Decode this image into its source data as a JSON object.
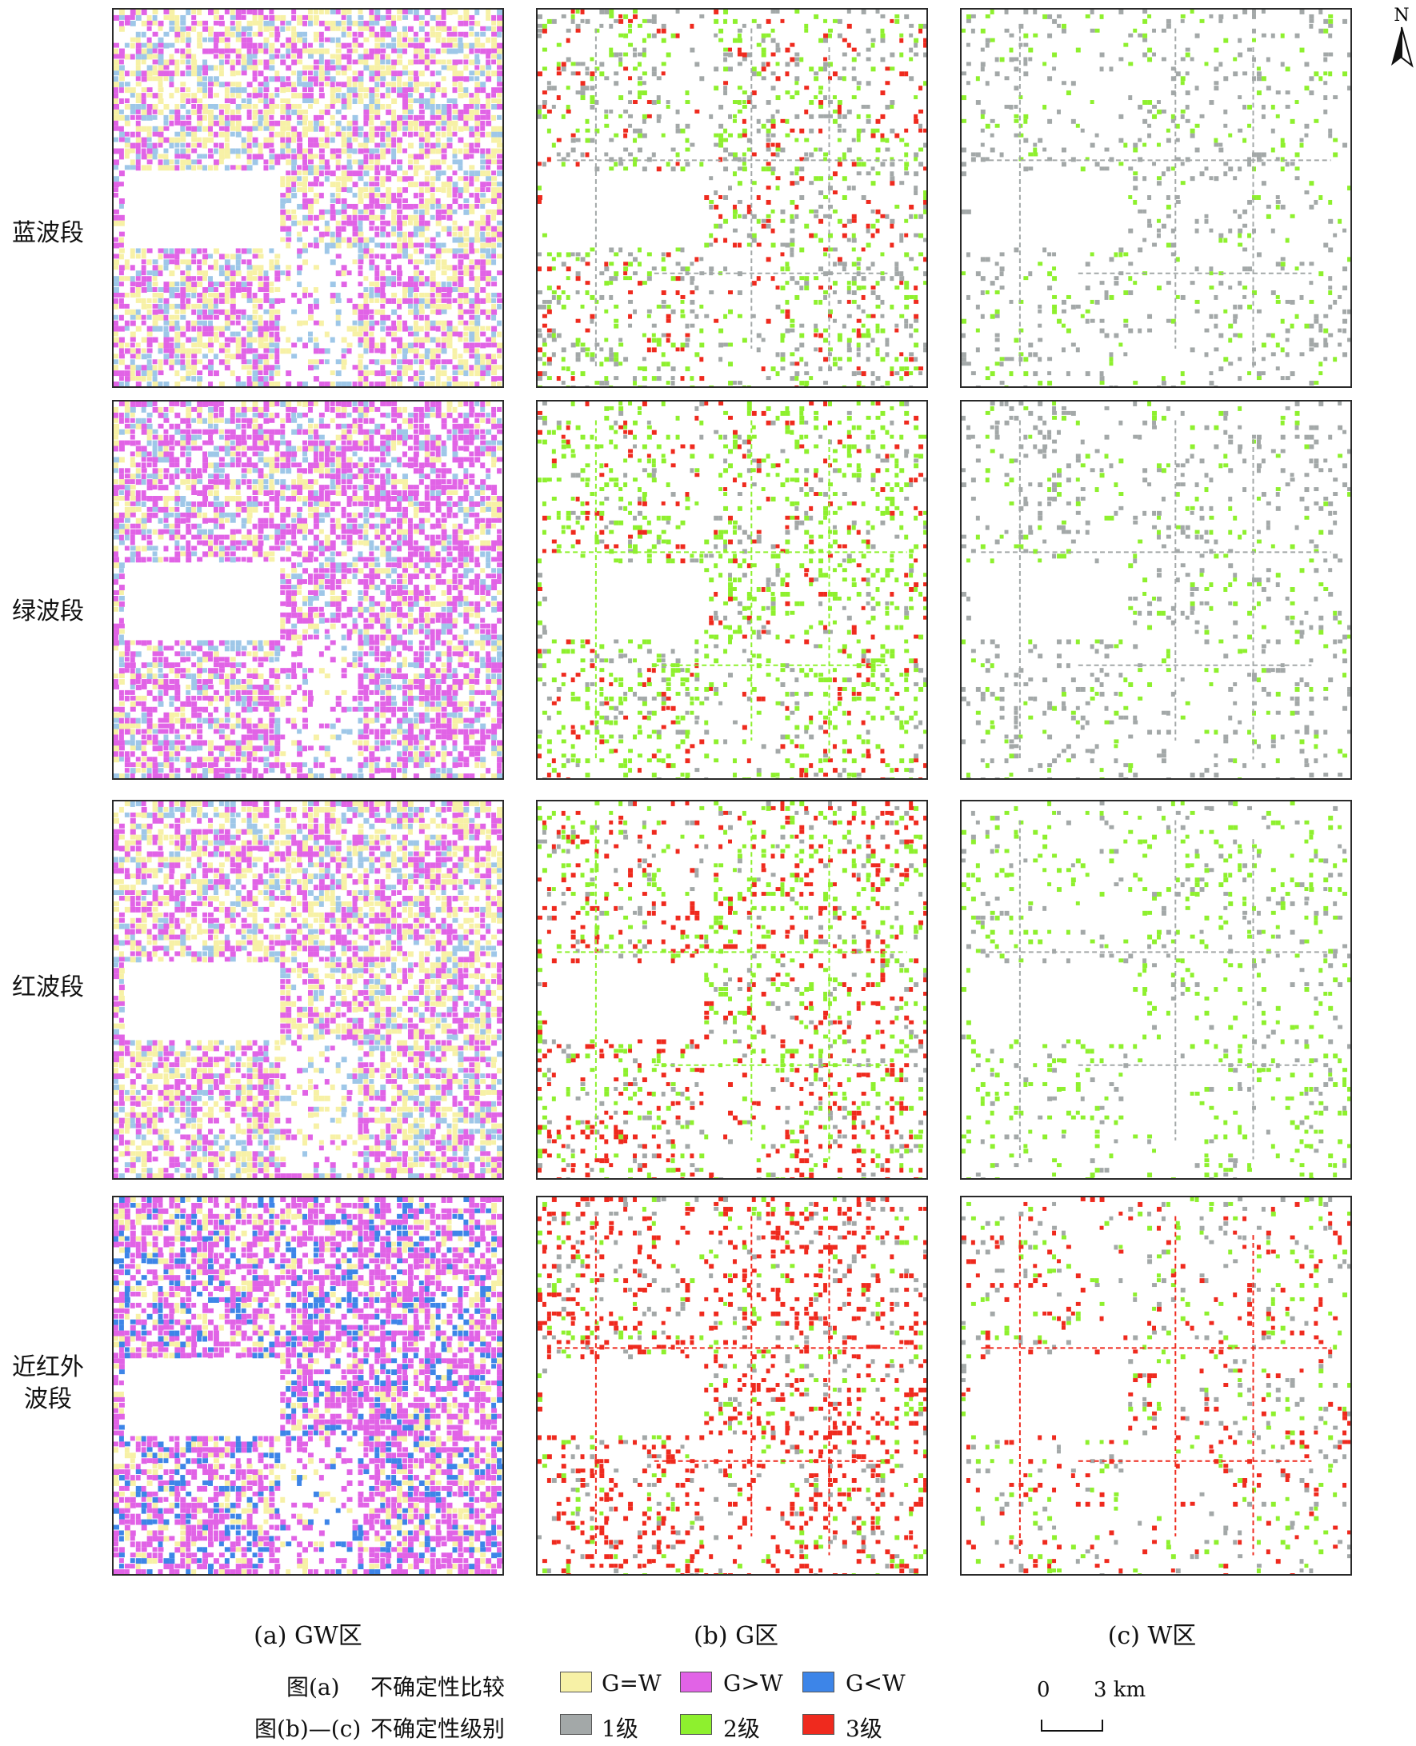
{
  "rows": [
    {
      "label": "蓝波段"
    },
    {
      "label": "绿波段"
    },
    {
      "label": "红波段"
    },
    {
      "label": "近红外",
      "label2": "波段"
    }
  ],
  "columns": [
    {
      "caption": "(a) GW区"
    },
    {
      "caption": "(b) G区"
    },
    {
      "caption": "(c) W区"
    }
  ],
  "north_label": "N",
  "legend": {
    "row_a_prefix": "图(a)",
    "row_a_title": "不确定性比较",
    "row_a_items": [
      {
        "label": "G=W",
        "color": "#f7f1a6"
      },
      {
        "label": "G>W",
        "color": "#e163e6"
      },
      {
        "label": "G<W",
        "color": "#3d85e8"
      }
    ],
    "row_b_prefix": "图(b)—(c)",
    "row_b_title": "不确定性级别",
    "row_b_items": [
      {
        "label": "1级",
        "color": "#a3a8a8"
      },
      {
        "label": "2级",
        "color": "#8ef02e"
      },
      {
        "label": "3级",
        "color": "#ef2a1e"
      }
    ]
  },
  "scale_bar": {
    "zero": "0",
    "end": "3 km"
  }
}
